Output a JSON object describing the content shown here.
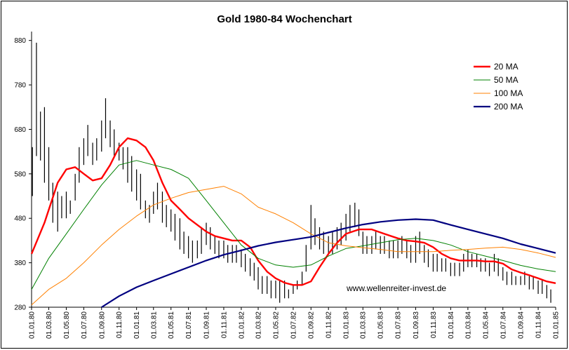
{
  "chart_data": {
    "type": "line",
    "title": "Gold 1980-84 Wochenchart",
    "ylim": [
      280,
      900
    ],
    "yticks": [
      280,
      380,
      480,
      580,
      680,
      780,
      880
    ],
    "xlim": [
      "1980-01-01",
      "1985-01-01"
    ],
    "xticks": [
      "01.01.80",
      "01.03.80",
      "01.05.80",
      "01.07.80",
      "01.09.80",
      "01.11.80",
      "01.01.81",
      "01.03.81",
      "01.05.81",
      "01.07.81",
      "01.09.81",
      "01.11.81",
      "01.01.82",
      "01.03.82",
      "01.05.82",
      "01.07.82",
      "01.09.82",
      "01.11.82",
      "01.01.83",
      "01.03.83",
      "01.05.83",
      "01.07.83",
      "01.09.83",
      "01.11.83",
      "01.01.84",
      "01.03.84",
      "01.05.84",
      "01.07.84",
      "01.09.84",
      "01.11.84",
      "01.01.85"
    ],
    "grid": false,
    "legend_position": "top-right",
    "annotation": "www.wellenreiter-invest.de",
    "price_bars": {
      "color": "#000000",
      "x": [
        "1980-01-04",
        "1980-01-18",
        "1980-02-01",
        "1980-02-15",
        "1980-03-01",
        "1980-03-15",
        "1980-04-01",
        "1980-04-15",
        "1980-05-01",
        "1980-05-15",
        "1980-06-01",
        "1980-06-15",
        "1980-07-01",
        "1980-07-15",
        "1980-08-01",
        "1980-08-15",
        "1980-09-01",
        "1980-09-15",
        "1980-10-01",
        "1980-10-15",
        "1980-11-01",
        "1980-11-15",
        "1980-12-01",
        "1980-12-15",
        "1981-01-01",
        "1981-01-15",
        "1981-02-01",
        "1981-02-15",
        "1981-03-01",
        "1981-03-15",
        "1981-04-01",
        "1981-04-15",
        "1981-05-01",
        "1981-05-15",
        "1981-06-01",
        "1981-06-15",
        "1981-07-01",
        "1981-07-15",
        "1981-08-01",
        "1981-08-15",
        "1981-09-01",
        "1981-09-15",
        "1981-10-01",
        "1981-10-15",
        "1981-11-01",
        "1981-11-15",
        "1981-12-01",
        "1981-12-15",
        "1982-01-01",
        "1982-01-15",
        "1982-02-01",
        "1982-02-15",
        "1982-03-01",
        "1982-03-15",
        "1982-04-01",
        "1982-04-15",
        "1982-05-01",
        "1982-05-15",
        "1982-06-01",
        "1982-06-15",
        "1982-07-01",
        "1982-07-15",
        "1982-08-01",
        "1982-08-15",
        "1982-09-01",
        "1982-09-15",
        "1982-10-01",
        "1982-10-15",
        "1982-11-01",
        "1982-11-15",
        "1982-12-01",
        "1982-12-15",
        "1983-01-01",
        "1983-01-15",
        "1983-02-01",
        "1983-02-15",
        "1983-03-01",
        "1983-03-15",
        "1983-04-01",
        "1983-04-15",
        "1983-05-01",
        "1983-05-15",
        "1983-06-01",
        "1983-06-15",
        "1983-07-01",
        "1983-07-15",
        "1983-08-01",
        "1983-08-15",
        "1983-09-01",
        "1983-09-15",
        "1983-10-01",
        "1983-10-15",
        "1983-11-01",
        "1983-11-15",
        "1983-12-01",
        "1983-12-15",
        "1984-01-01",
        "1984-01-15",
        "1984-02-01",
        "1984-02-15",
        "1984-03-01",
        "1984-03-15",
        "1984-04-01",
        "1984-04-15",
        "1984-05-01",
        "1984-05-15",
        "1984-06-01",
        "1984-06-15",
        "1984-07-01",
        "1984-07-15",
        "1984-08-01",
        "1984-08-15",
        "1984-09-01",
        "1984-09-15",
        "1984-10-01",
        "1984-10-15",
        "1984-11-01",
        "1984-11-15",
        "1984-12-01",
        "1984-12-15"
      ],
      "high": [
        640,
        875,
        720,
        730,
        640,
        560,
        540,
        530,
        540,
        520,
        580,
        640,
        660,
        690,
        650,
        660,
        700,
        750,
        700,
        680,
        650,
        640,
        640,
        620,
        590,
        580,
        520,
        510,
        540,
        560,
        540,
        510,
        500,
        490,
        480,
        450,
        440,
        430,
        430,
        460,
        470,
        460,
        440,
        430,
        430,
        420,
        420,
        420,
        410,
        400,
        390,
        380,
        370,
        350,
        350,
        340,
        340,
        340,
        340,
        320,
        330,
        340,
        360,
        420,
        510,
        480,
        460,
        450,
        440,
        450,
        460,
        470,
        490,
        510,
        515,
        500,
        450,
        440,
        440,
        450,
        440,
        440,
        430,
        430,
        430,
        440,
        430,
        420,
        440,
        450,
        420,
        410,
        400,
        400,
        390,
        390,
        380,
        380,
        380,
        400,
        410,
        400,
        400,
        390,
        390,
        380,
        400,
        390,
        370,
        360,
        360,
        350,
        350,
        360,
        350,
        350,
        340,
        340,
        330,
        320
      ],
      "low": [
        530,
        620,
        610,
        560,
        520,
        470,
        450,
        480,
        480,
        490,
        520,
        560,
        600,
        620,
        600,
        610,
        630,
        660,
        640,
        620,
        610,
        590,
        560,
        540,
        520,
        500,
        480,
        470,
        490,
        500,
        470,
        460,
        450,
        430,
        410,
        400,
        390,
        380,
        390,
        400,
        420,
        410,
        400,
        390,
        390,
        380,
        380,
        380,
        370,
        360,
        350,
        340,
        320,
        310,
        310,
        300,
        300,
        290,
        300,
        300,
        310,
        320,
        330,
        360,
        410,
        420,
        410,
        400,
        400,
        400,
        410,
        420,
        430,
        450,
        460,
        440,
        400,
        400,
        400,
        410,
        400,
        400,
        390,
        390,
        390,
        400,
        390,
        380,
        380,
        400,
        380,
        370,
        360,
        360,
        360,
        360,
        350,
        350,
        350,
        360,
        370,
        370,
        370,
        360,
        360,
        350,
        360,
        350,
        340,
        330,
        330,
        330,
        330,
        330,
        320,
        320,
        310,
        310,
        300,
        290
      ]
    },
    "series": [
      {
        "name": "20 MA",
        "color": "#ff0000",
        "width": 2.4,
        "x": [
          "1980-01-01",
          "1980-02-15",
          "1980-04-01",
          "1980-05-01",
          "1980-06-01",
          "1980-07-01",
          "1980-08-01",
          "1980-09-01",
          "1980-10-01",
          "1980-11-01",
          "1980-12-01",
          "1981-01-01",
          "1981-02-01",
          "1981-03-01",
          "1981-04-01",
          "1981-05-01",
          "1981-06-01",
          "1981-07-01",
          "1981-08-01",
          "1981-09-01",
          "1981-10-01",
          "1981-11-01",
          "1981-12-01",
          "1982-01-01",
          "1982-02-01",
          "1982-03-01",
          "1982-04-01",
          "1982-05-01",
          "1982-06-01",
          "1982-07-01",
          "1982-08-01",
          "1982-09-01",
          "1982-10-01",
          "1982-11-01",
          "1982-12-01",
          "1983-01-01",
          "1983-02-15",
          "1983-04-01",
          "1983-05-15",
          "1983-07-01",
          "1983-08-01",
          "1983-09-01",
          "1983-10-01",
          "1983-11-01",
          "1983-12-01",
          "1984-01-01",
          "1984-02-01",
          "1984-03-01",
          "1984-04-01",
          "1984-05-01",
          "1984-06-01",
          "1984-07-01",
          "1984-08-01",
          "1984-09-01",
          "1984-10-01",
          "1984-11-01",
          "1984-12-01",
          "1985-01-01"
        ],
        "y": [
          400,
          470,
          560,
          590,
          595,
          580,
          565,
          570,
          600,
          640,
          660,
          655,
          640,
          610,
          560,
          520,
          500,
          480,
          465,
          450,
          440,
          435,
          430,
          430,
          415,
          385,
          360,
          345,
          335,
          330,
          330,
          338,
          370,
          400,
          425,
          445,
          455,
          455,
          445,
          435,
          430,
          428,
          425,
          415,
          400,
          390,
          385,
          385,
          385,
          383,
          383,
          378,
          365,
          358,
          352,
          345,
          338,
          334
        ]
      },
      {
        "name": "50 MA",
        "color": "#008000",
        "width": 1.0,
        "x": [
          "1980-01-01",
          "1980-03-01",
          "1980-05-01",
          "1980-07-01",
          "1980-09-01",
          "1980-11-01",
          "1981-01-01",
          "1981-03-01",
          "1981-05-01",
          "1981-07-01",
          "1981-09-01",
          "1981-11-01",
          "1982-01-01",
          "1982-03-01",
          "1982-05-01",
          "1982-07-01",
          "1982-09-01",
          "1982-11-01",
          "1983-01-01",
          "1983-03-01",
          "1983-05-01",
          "1983-07-01",
          "1983-09-01",
          "1983-11-01",
          "1984-01-01",
          "1984-03-01",
          "1984-05-01",
          "1984-07-01",
          "1984-09-01",
          "1984-11-01",
          "1985-01-01"
        ],
        "y": [
          320,
          390,
          445,
          500,
          555,
          600,
          610,
          600,
          590,
          570,
          520,
          470,
          420,
          390,
          375,
          370,
          375,
          395,
          412,
          418,
          425,
          432,
          435,
          430,
          420,
          405,
          395,
          385,
          374,
          366,
          360
        ]
      },
      {
        "name": "100 MA",
        "color": "#ff8000",
        "width": 1.0,
        "x": [
          "1980-01-01",
          "1980-03-01",
          "1980-05-01",
          "1980-07-01",
          "1980-09-01",
          "1980-11-01",
          "1981-01-01",
          "1981-03-01",
          "1981-05-01",
          "1981-07-01",
          "1981-09-01",
          "1981-11-01",
          "1982-01-01",
          "1982-03-01",
          "1982-05-01",
          "1982-07-01",
          "1982-09-01",
          "1982-11-01",
          "1983-01-01",
          "1983-03-01",
          "1983-05-01",
          "1983-07-01",
          "1983-09-01",
          "1983-11-01",
          "1984-01-01",
          "1984-03-01",
          "1984-05-01",
          "1984-07-01",
          "1984-09-01",
          "1984-11-01",
          "1985-01-01"
        ],
        "y": [
          285,
          320,
          345,
          380,
          420,
          455,
          485,
          510,
          525,
          538,
          545,
          552,
          535,
          505,
          490,
          470,
          445,
          425,
          418,
          414,
          410,
          405,
          405,
          405,
          408,
          410,
          413,
          415,
          410,
          402,
          392
        ]
      },
      {
        "name": "200 MA",
        "color": "#000080",
        "width": 2.2,
        "x": [
          "1980-09-01",
          "1980-11-01",
          "1981-01-01",
          "1981-03-01",
          "1981-05-01",
          "1981-07-01",
          "1981-09-01",
          "1981-11-01",
          "1982-01-01",
          "1982-03-01",
          "1982-05-01",
          "1982-07-01",
          "1982-09-01",
          "1982-11-01",
          "1983-01-01",
          "1983-03-01",
          "1983-05-01",
          "1983-07-01",
          "1983-09-01",
          "1983-11-01",
          "1984-01-01",
          "1984-03-01",
          "1984-05-01",
          "1984-07-01",
          "1984-09-01",
          "1984-11-01",
          "1985-01-01"
        ],
        "y": [
          280,
          305,
          325,
          340,
          355,
          370,
          385,
          398,
          408,
          418,
          426,
          432,
          438,
          448,
          458,
          466,
          472,
          476,
          478,
          476,
          465,
          455,
          445,
          435,
          422,
          412,
          402
        ]
      }
    ]
  }
}
